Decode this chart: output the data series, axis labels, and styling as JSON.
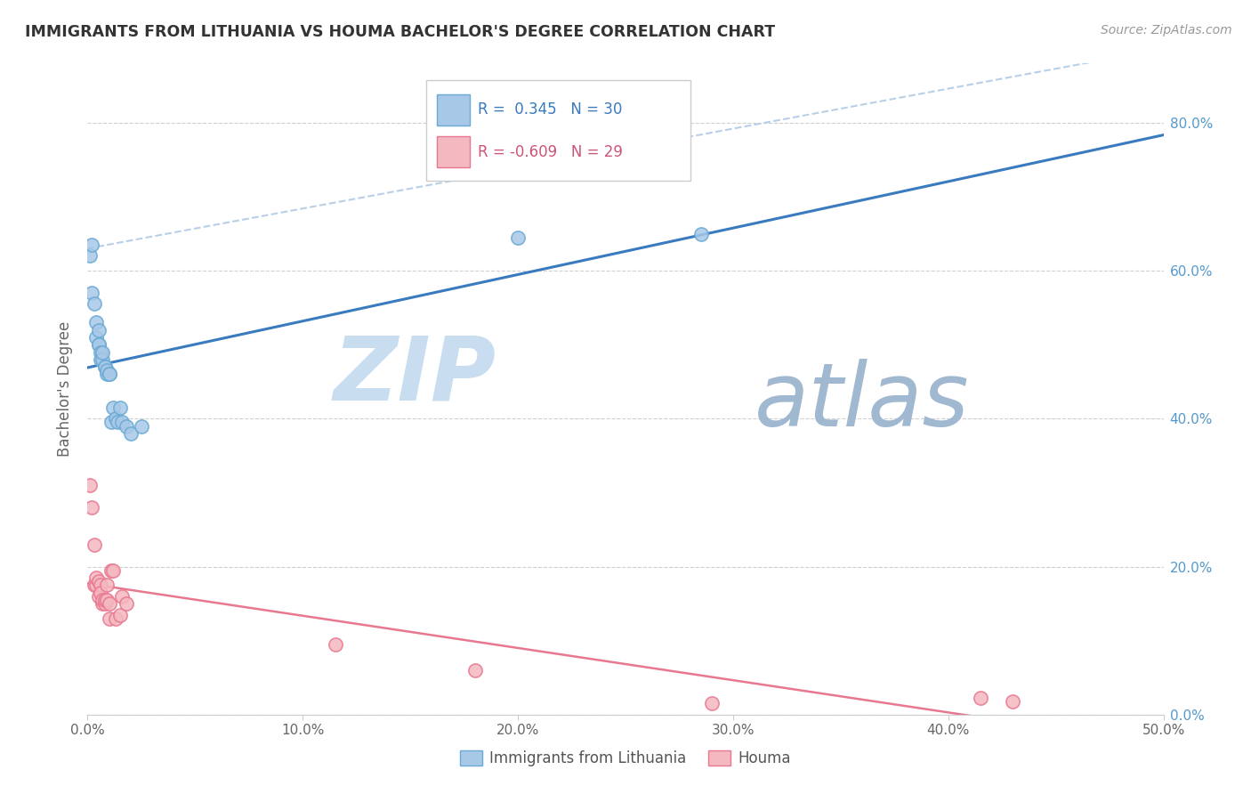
{
  "title": "IMMIGRANTS FROM LITHUANIA VS HOUMA BACHELOR'S DEGREE CORRELATION CHART",
  "source": "Source: ZipAtlas.com",
  "ylabel": "Bachelor's Degree",
  "xlim": [
    0.0,
    0.5
  ],
  "ylim": [
    0.0,
    0.88
  ],
  "xticks": [
    0.0,
    0.1,
    0.2,
    0.3,
    0.4,
    0.5
  ],
  "xtick_labels": [
    "0.0%",
    "10.0%",
    "20.0%",
    "30.0%",
    "40.0%",
    "50.0%"
  ],
  "yticks": [
    0.0,
    0.2,
    0.4,
    0.6,
    0.8
  ],
  "ytick_labels": [
    "0.0%",
    "20.0%",
    "40.0%",
    "60.0%",
    "80.0%"
  ],
  "blue_color": "#a8c8e8",
  "blue_edge_color": "#6aaad4",
  "pink_color": "#f4b8c0",
  "pink_edge_color": "#e87890",
  "trend_blue_color": "#3a7abf",
  "trend_pink_color": "#e87890",
  "dashed_line_color": "#b8cfe8",
  "R_blue": 0.345,
  "N_blue": 30,
  "R_pink": -0.609,
  "N_pink": 29,
  "legend_label_blue": "Immigrants from Lithuania",
  "legend_label_pink": "Houma",
  "blue_x": [
    0.001,
    0.002,
    0.002,
    0.003,
    0.004,
    0.004,
    0.005,
    0.005,
    0.005,
    0.006,
    0.006,
    0.007,
    0.007,
    0.008,
    0.008,
    0.009,
    0.009,
    0.01,
    0.01,
    0.011,
    0.012,
    0.013,
    0.014,
    0.015,
    0.016,
    0.018,
    0.02,
    0.025,
    0.2,
    0.285
  ],
  "blue_y": [
    0.62,
    0.635,
    0.57,
    0.555,
    0.53,
    0.51,
    0.5,
    0.5,
    0.52,
    0.49,
    0.48,
    0.48,
    0.49,
    0.47,
    0.47,
    0.46,
    0.465,
    0.46,
    0.46,
    0.395,
    0.415,
    0.4,
    0.395,
    0.415,
    0.395,
    0.39,
    0.38,
    0.39,
    0.645,
    0.65
  ],
  "pink_x": [
    0.001,
    0.002,
    0.003,
    0.003,
    0.004,
    0.004,
    0.005,
    0.005,
    0.006,
    0.006,
    0.007,
    0.007,
    0.008,
    0.008,
    0.009,
    0.009,
    0.01,
    0.01,
    0.011,
    0.012,
    0.013,
    0.015,
    0.016,
    0.018,
    0.115,
    0.18,
    0.29,
    0.415,
    0.43
  ],
  "pink_y": [
    0.31,
    0.28,
    0.23,
    0.175,
    0.175,
    0.185,
    0.16,
    0.18,
    0.175,
    0.165,
    0.15,
    0.155,
    0.15,
    0.155,
    0.175,
    0.155,
    0.15,
    0.13,
    0.195,
    0.195,
    0.13,
    0.135,
    0.16,
    0.15,
    0.095,
    0.06,
    0.015,
    0.023,
    0.018
  ],
  "watermark_zip": "ZIP",
  "watermark_atlas": "atlas",
  "watermark_color_zip": "#c8ddf0",
  "watermark_color_atlas": "#a0b8d0",
  "background_color": "#ffffff",
  "grid_color": "#d0d0d0"
}
